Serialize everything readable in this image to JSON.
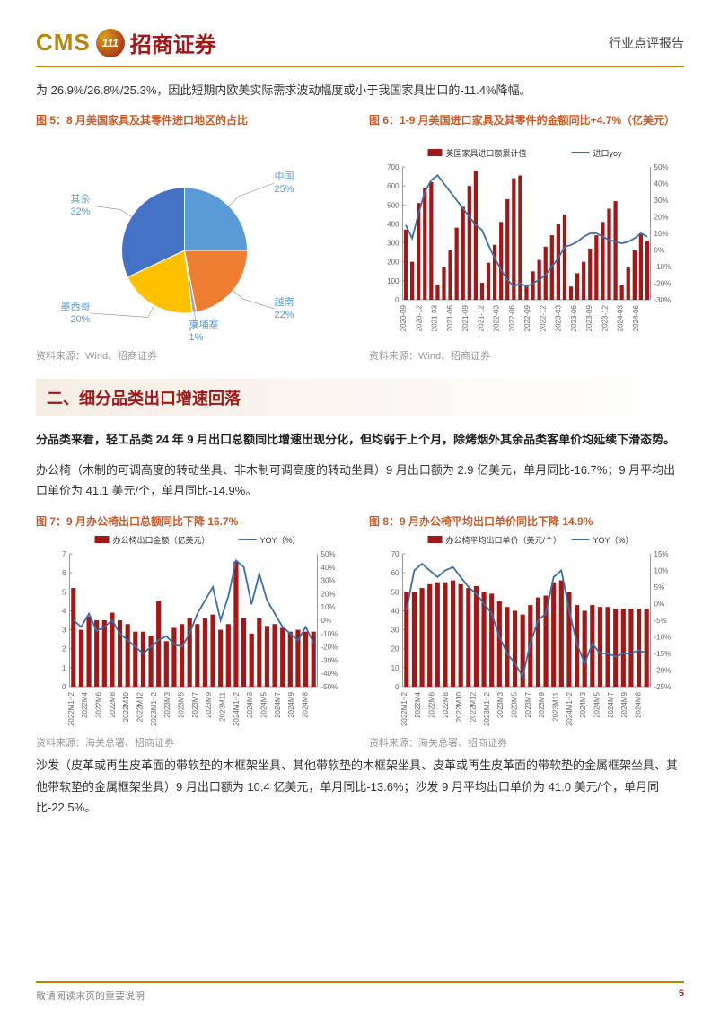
{
  "header": {
    "cms": "CMS",
    "logo_text": "111",
    "company": "招商证券",
    "report_type": "行业点评报告"
  },
  "intro_text": "为 26.9%/26.8%/25.3%，因此短期内欧美实际需求波动幅度或小于我国家具出口的-11.4%降幅。",
  "fig5": {
    "title": "图 5：8 月美国家具及其零件进口地区的占比",
    "type": "pie",
    "slices": [
      {
        "label": "中国",
        "value": 25,
        "color": "#5b9bd5"
      },
      {
        "label": "越南",
        "value": 22,
        "color": "#ed7d31"
      },
      {
        "label": "柬埔寨",
        "value": 1,
        "color": "#a5a5a5"
      },
      {
        "label": "墨西哥",
        "value": 20,
        "color": "#ffc000"
      },
      {
        "label": "其余",
        "value": 32,
        "color": "#4472c4"
      }
    ],
    "label_color": "#5b9bd5",
    "source": "资料来源：Wind、招商证券"
  },
  "fig6": {
    "title": "图 6：1-9 月美国进口家具及其零件的金额同比+4.7%（亿美元）",
    "type": "combo",
    "legend_bar": "美国家具进口额累计值",
    "legend_line": "进口yoy",
    "bar_color": "#a01818",
    "line_color": "#3a6ea5",
    "y1_max": 700,
    "y1_step": 100,
    "y2_min": -30,
    "y2_max": 50,
    "y2_step": 10,
    "categories": [
      "2020-09",
      "2020-12",
      "2021-03",
      "2021-06",
      "2021-09",
      "2021-12",
      "2022-03",
      "2022-06",
      "2022-09",
      "2022-12",
      "2023-03",
      "2023-06",
      "2023-09",
      "2023-12",
      "2024-03",
      "2024-06"
    ],
    "bars": [
      [
        370,
        200,
        510,
        590,
        620
      ],
      [
        80,
        170,
        260,
        380,
        490,
        600,
        680
      ],
      [
        90,
        195,
        290,
        410,
        530,
        640,
        655
      ],
      [
        70,
        150,
        210,
        280,
        340,
        400,
        450
      ],
      [
        70,
        140,
        200,
        270,
        340,
        410,
        480,
        520
      ],
      [
        80,
        170,
        260,
        350
      ]
    ],
    "bar_values": [
      370,
      200,
      510,
      590,
      620,
      80,
      170,
      260,
      380,
      490,
      600,
      680,
      90,
      195,
      290,
      410,
      530,
      640,
      655,
      70,
      150,
      210,
      280,
      340,
      400,
      450,
      70,
      140,
      200,
      270,
      340,
      410,
      480,
      520,
      80,
      170,
      260,
      350,
      310
    ],
    "line_values": [
      15,
      7,
      22,
      35,
      42,
      45,
      40,
      35,
      30,
      25,
      20,
      15,
      12,
      3,
      -5,
      -12,
      -18,
      -22,
      -20,
      -22,
      -20,
      -18,
      -15,
      -10,
      -5,
      2,
      3,
      5,
      8,
      10,
      10,
      8,
      6,
      5,
      4,
      5,
      7,
      10,
      8
    ],
    "source": "资料来源：Wind、招商证券"
  },
  "section2": {
    "title": "二、细分品类出口增速回落",
    "bold_para": "分品类来看，轻工品类 24 年 9 月出口总额同比增速出现分化，但均弱于上个月，除烤烟外其余品类客单价均延续下滑态势。",
    "para1": "办公椅（木制的可调高度的转动坐具、非木制可调高度的转动坐具）9 月出口额为 2.9 亿美元，单月同比-16.7%；9 月平均出口单价为 41.1 美元/个，单月同比-14.9%。"
  },
  "fig7": {
    "title": "图 7：9 月办公椅出口总额同比下降 16.7%",
    "legend_bar": "办公椅出口金额（亿美元）",
    "legend_line": "YOY（%）",
    "bar_color": "#a01818",
    "line_color": "#3a6ea5",
    "y1_max": 7,
    "y1_step": 1,
    "y2_min": -50,
    "y2_max": 50,
    "y2_step": 10,
    "categories": [
      "2022M1~2",
      "2022M4",
      "2022M6",
      "2022M8",
      "2022M10",
      "2022M12",
      "2023M1~2",
      "2023M3",
      "2023M5",
      "2023M7",
      "2023M9",
      "2023M11",
      "2024M1~2",
      "2024M3",
      "2024M5",
      "2024M7",
      "2024M9",
      "2024M8"
    ],
    "bar_values": [
      5.2,
      3.0,
      3.7,
      3.5,
      3.5,
      3.9,
      3.5,
      3.3,
      2.9,
      2.9,
      2.7,
      4.5,
      2.4,
      3.1,
      3.3,
      3.6,
      3.3,
      3.6,
      3.8,
      3.0,
      3.3,
      6.6,
      3.6,
      2.8,
      3.6,
      3.2,
      3.3,
      3.1,
      2.9,
      3.0,
      2.9,
      2.9
    ],
    "line_values": [
      0,
      -5,
      5,
      -8,
      -5,
      0,
      -10,
      -15,
      -20,
      -25,
      -20,
      -15,
      -12,
      -18,
      -20,
      -10,
      5,
      15,
      25,
      0,
      18,
      45,
      40,
      12,
      35,
      15,
      5,
      -5,
      -10,
      -15,
      -5,
      -17
    ],
    "source": "资料来源：海关总署、招商证券"
  },
  "fig8": {
    "title": "图 8：9 月办公椅平均出口单价同比下降 14.9%",
    "legend_bar": "办公椅平均出口单价（美元/个）",
    "legend_line": "YOY（%）",
    "bar_color": "#a01818",
    "line_color": "#3a6ea5",
    "y1_max": 70,
    "y1_step": 10,
    "y2_min": -25,
    "y2_max": 15,
    "y2_step": 5,
    "categories": [
      "2022M1~2",
      "2022M4",
      "2022M6",
      "2022M8",
      "2022M10",
      "2022M12",
      "2023M1~2",
      "2023M3",
      "2023M5",
      "2023M7",
      "2023M9",
      "2023M11",
      "2024M1~2",
      "2024M3",
      "2024M5",
      "2024M7",
      "2024M9",
      "2024M8"
    ],
    "bar_values": [
      50,
      50,
      52,
      54,
      55,
      55,
      56,
      54,
      52,
      53,
      50,
      49,
      45,
      42,
      40,
      38,
      43,
      47,
      48,
      55,
      56,
      50,
      43,
      40,
      43,
      42,
      42,
      41,
      41,
      41,
      41,
      41
    ],
    "line_values": [
      -2,
      10,
      12,
      10,
      8,
      10,
      11,
      8,
      5,
      3,
      0,
      -3,
      -10,
      -15,
      -18,
      -22,
      -12,
      -5,
      -3,
      8,
      10,
      -2,
      -12,
      -18,
      -12,
      -15,
      -15,
      -16,
      -15,
      -15,
      -14,
      -15
    ],
    "source": "资料来源：海关总署、招商证券"
  },
  "para_sofa": "沙发（皮革或再生皮革面的带软垫的木框架坐具、其他带软垫的木框架坐具、皮革或再生皮革面的带软垫的金属框架坐具、其他带软垫的金属框架坐具）9 月出口额为 10.4 亿美元，单月同比-13.6%；沙发 9 月平均出口单价为 41.0 美元/个，单月同比-22.5%。",
  "footer": {
    "note": "敬请阅读末页的重要说明",
    "page": "5"
  }
}
